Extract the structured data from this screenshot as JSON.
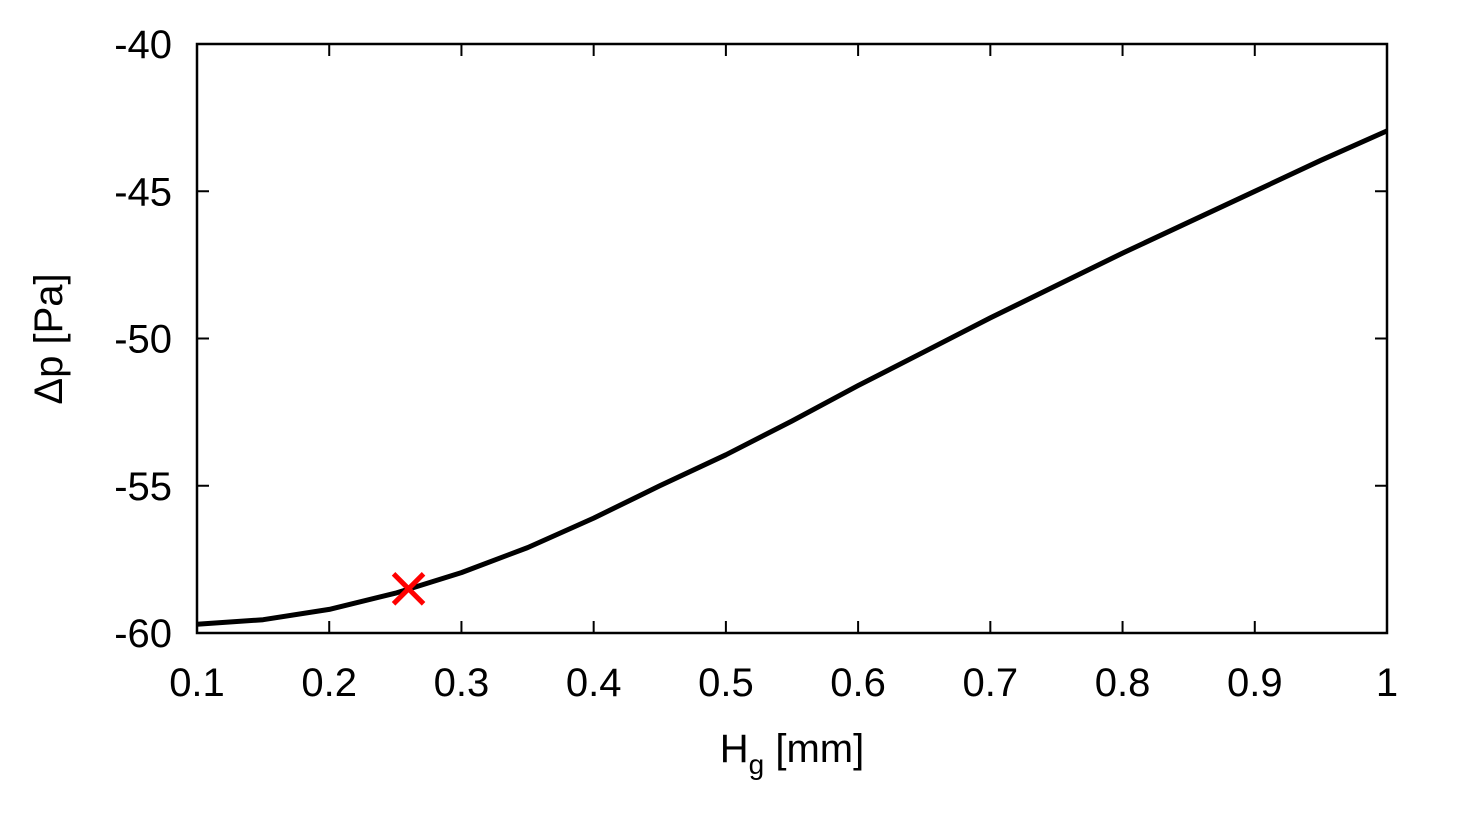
{
  "chart_data": {
    "type": "line",
    "xlabel": {
      "main": "H",
      "sub": "g",
      "unit": " [mm]"
    },
    "ylabel": "Δp [Pa]",
    "xlim": [
      0.1,
      1.0
    ],
    "ylim": [
      -60,
      -40
    ],
    "xticks": [
      0.1,
      0.2,
      0.3,
      0.4,
      0.5,
      0.6,
      0.7,
      0.8,
      0.9,
      1.0
    ],
    "xtick_labels": [
      "0.1",
      "0.2",
      "0.3",
      "0.4",
      "0.5",
      "0.6",
      "0.7",
      "0.8",
      "0.9",
      "1"
    ],
    "yticks": [
      -40,
      -45,
      -50,
      -55,
      -60
    ],
    "ytick_labels": [
      "-40",
      "-45",
      "-50",
      "-55",
      "-60"
    ],
    "grid": false,
    "series": [
      {
        "color": "#000000",
        "x": [
          0.1,
          0.15,
          0.2,
          0.25,
          0.3,
          0.35,
          0.4,
          0.45,
          0.5,
          0.55,
          0.6,
          0.65,
          0.7,
          0.75,
          0.8,
          0.85,
          0.9,
          0.95,
          1.0
        ],
        "y": [
          -59.7,
          -59.55,
          -59.2,
          -58.65,
          -57.95,
          -57.1,
          -56.1,
          -55.0,
          -53.95,
          -52.8,
          -51.6,
          -50.45,
          -49.3,
          -48.2,
          -47.1,
          -46.05,
          -45.0,
          -43.95,
          -42.95
        ]
      }
    ],
    "marker": {
      "x": 0.26,
      "y": -58.5,
      "symbol": "x",
      "color": "#ff0000"
    }
  }
}
